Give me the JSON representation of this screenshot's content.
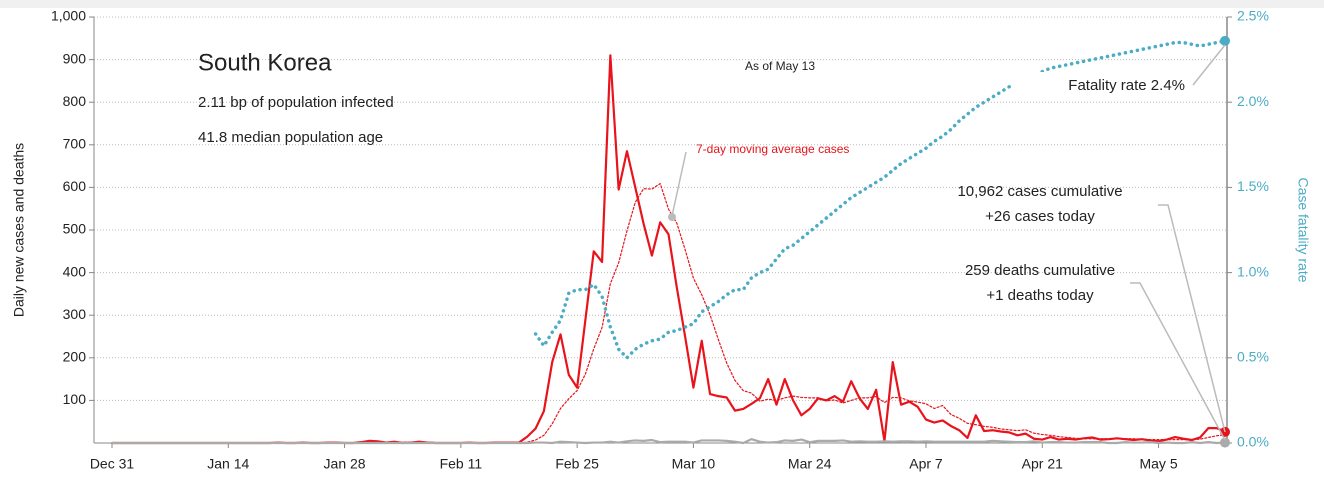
{
  "chart_data": {
    "type": "line",
    "title": "South Korea",
    "annotations": [
      "2.11 bp of population infected",
      "41.8 median population age",
      "As of May 13",
      "Fatality rate 2.4%",
      "7-day moving average cases",
      "10,962 cases cumulative",
      "+26 cases today",
      "259 deaths cumulative",
      "+1 deaths today"
    ],
    "ylabel": "Daily new cases and deaths",
    "y2label": "Case fatality rate",
    "categories": [
      "Dec 31",
      null,
      null,
      null,
      null,
      null,
      null,
      null,
      null,
      null,
      null,
      null,
      null,
      null,
      "Jan 14",
      null,
      null,
      null,
      null,
      null,
      null,
      null,
      null,
      null,
      null,
      null,
      null,
      null,
      "Jan 28",
      null,
      null,
      null,
      null,
      null,
      null,
      null,
      null,
      null,
      null,
      null,
      null,
      null,
      "Feb 11",
      null,
      null,
      null,
      null,
      null,
      null,
      null,
      null,
      null,
      null,
      null,
      null,
      null,
      "Feb 25",
      null,
      null,
      null,
      null,
      null,
      null,
      null,
      null,
      null,
      null,
      null,
      null,
      null,
      "Mar 10",
      null,
      null,
      null,
      null,
      null,
      null,
      null,
      null,
      null,
      null,
      null,
      null,
      null,
      "Mar 24",
      null,
      null,
      null,
      null,
      null,
      null,
      null,
      null,
      null,
      null,
      null,
      null,
      null,
      "Apr 7",
      null,
      null,
      null,
      null,
      null,
      null,
      null,
      null,
      null,
      null,
      null,
      null,
      null,
      "Apr 21",
      null,
      null,
      null,
      null,
      null,
      null,
      null,
      null,
      null,
      null,
      null,
      null,
      null,
      "May 5",
      null,
      null,
      null,
      null,
      null,
      null,
      null,
      null
    ],
    "ylim": [
      0,
      1000
    ],
    "yticks": [
      100,
      200,
      300,
      400,
      500,
      600,
      700,
      800,
      900,
      {
        "value": 1000,
        "label": "1,000"
      }
    ],
    "y2lim": [
      0,
      2.5
    ],
    "y2ticks": [
      {
        "value": 0,
        "label": "0.0%"
      },
      {
        "value": 0.5,
        "label": "0.5%"
      },
      {
        "value": 1,
        "label": "1.0%"
      },
      {
        "value": 1.5,
        "label": "1.5%"
      },
      {
        "value": 2,
        "label": "2.0%"
      },
      {
        "value": 2.5,
        "label": "2.5%"
      }
    ],
    "grid": true,
    "series": [
      {
        "color": "#e8131b",
        "linestyle": "solid",
        "end_dot": true,
        "values": [
          0,
          0,
          0,
          0,
          0,
          0,
          0,
          0,
          0,
          0,
          0,
          0,
          0,
          0,
          0,
          0,
          0,
          0,
          0,
          0,
          1,
          0,
          0,
          1,
          0,
          0,
          1,
          1,
          0,
          0,
          2,
          5,
          4,
          1,
          3,
          0,
          1,
          3,
          1,
          0,
          0,
          0,
          0,
          1,
          0,
          0,
          1,
          1,
          1,
          1,
          15,
          34,
          75,
          190,
          255,
          160,
          130,
          290,
          450,
          425,
          910,
          595,
          685,
          600,
          515,
          440,
          518,
          490,
          365,
          250,
          130,
          240,
          115,
          110,
          107,
          76,
          80,
          92,
          105,
          150,
          90,
          150,
          100,
          65,
          80,
          105,
          100,
          110,
          97,
          145,
          105,
          80,
          125,
          5,
          190,
          90,
          97,
          85,
          55,
          48,
          53,
          40,
          30,
          12,
          65,
          28,
          30,
          27,
          25,
          18,
          22,
          10,
          8,
          14,
          8,
          10,
          8,
          11,
          13,
          8,
          9,
          11,
          9,
          7,
          9,
          6,
          4,
          8,
          14,
          10,
          7,
          13,
          35,
          35,
          26
        ]
      },
      {
        "color": "#e8131b",
        "linestyle": "dotted",
        "values": [
          0,
          0,
          0,
          0,
          0,
          0,
          0,
          0,
          0,
          0,
          0,
          0,
          0,
          0,
          0,
          0,
          0,
          0,
          0,
          0,
          0,
          0,
          0,
          0,
          0,
          0,
          0,
          0,
          0,
          0,
          1,
          1,
          2,
          2,
          2,
          2,
          2,
          2,
          2,
          1,
          1,
          1,
          1,
          0,
          0,
          0,
          0,
          0,
          0,
          0,
          2,
          7,
          18,
          45,
          81,
          104,
          123,
          162,
          221,
          271,
          374,
          423,
          498,
          565,
          597,
          596,
          609,
          549,
          516,
          454,
          387,
          348,
          301,
          243,
          188,
          147,
          123,
          117,
          98,
          103,
          100,
          106,
          110,
          107,
          106,
          106,
          99,
          101,
          94,
          100,
          106,
          106,
          109,
          95,
          107,
          106,
          99,
          96,
          92,
          81,
          88,
          67,
          58,
          46,
          43,
          39,
          37,
          33,
          31,
          29,
          31,
          23,
          20,
          18,
          15,
          13,
          11,
          10,
          10,
          10,
          10,
          10,
          10,
          10,
          9,
          8,
          8,
          8,
          8,
          8,
          8,
          9,
          13,
          17,
          19
        ]
      },
      {
        "color": "#aaaaaa",
        "linestyle": "solid",
        "end_dot": true,
        "values": [
          0,
          0,
          0,
          0,
          0,
          0,
          0,
          0,
          0,
          0,
          0,
          0,
          0,
          0,
          0,
          0,
          0,
          0,
          0,
          0,
          0,
          0,
          0,
          0,
          0,
          0,
          0,
          0,
          0,
          0,
          0,
          0,
          0,
          0,
          0,
          0,
          0,
          0,
          0,
          0,
          0,
          0,
          0,
          0,
          0,
          0,
          0,
          0,
          0,
          0,
          0,
          1,
          1,
          0,
          3,
          2,
          1,
          0,
          1,
          1,
          3,
          1,
          4,
          6,
          5,
          7,
          2,
          3,
          3,
          3,
          1,
          6,
          6,
          6,
          5,
          3,
          0,
          9,
          3,
          1,
          2,
          6,
          5,
          8,
          2,
          5,
          5,
          5,
          6,
          3,
          4,
          3,
          3,
          4,
          3,
          4,
          4,
          3,
          4,
          3,
          3,
          3,
          3,
          3,
          3,
          3,
          5,
          4,
          3,
          2,
          2,
          4,
          1,
          2,
          2,
          1,
          1,
          2,
          2,
          2,
          0,
          0,
          2,
          1,
          1,
          2,
          0,
          1,
          0,
          0,
          2,
          0,
          2,
          0,
          1
        ]
      },
      {
        "color": "#4bacc6",
        "linestyle": "dotted",
        "axis": "y2",
        "end_dot": true,
        "values": [
          null,
          null,
          null,
          null,
          null,
          null,
          null,
          null,
          null,
          null,
          null,
          null,
          null,
          null,
          null,
          null,
          null,
          null,
          null,
          null,
          null,
          null,
          null,
          null,
          null,
          null,
          null,
          null,
          null,
          null,
          null,
          null,
          null,
          null,
          null,
          null,
          null,
          null,
          null,
          null,
          null,
          null,
          null,
          null,
          null,
          null,
          null,
          null,
          null,
          null,
          null,
          0.64,
          0.57,
          0.65,
          0.72,
          0.88,
          0.9,
          0.9,
          0.93,
          0.86,
          0.68,
          0.55,
          0.5,
          0.55,
          0.58,
          0.6,
          0.61,
          0.65,
          0.66,
          0.68,
          0.7,
          0.77,
          0.8,
          0.83,
          0.87,
          0.9,
          0.9,
          0.97,
          1.0,
          1.02,
          1.08,
          1.14,
          1.16,
          1.2,
          1.24,
          1.28,
          1.32,
          1.36,
          1.4,
          1.44,
          1.47,
          1.5,
          1.53,
          1.56,
          1.6,
          1.64,
          1.67,
          1.7,
          1.73,
          1.77,
          1.8,
          1.84,
          1.89,
          1.93,
          1.97,
          2.0,
          2.03,
          2.06,
          2.09,
          2.11,
          2.13,
          2.16,
          2.18,
          2.2,
          2.21,
          2.22,
          2.23,
          2.24,
          2.25,
          2.26,
          2.27,
          2.28,
          2.29,
          2.3,
          2.31,
          2.32,
          2.33,
          2.34,
          2.35,
          2.35,
          2.34,
          2.33,
          2.34,
          2.35,
          2.36
        ]
      }
    ]
  }
}
